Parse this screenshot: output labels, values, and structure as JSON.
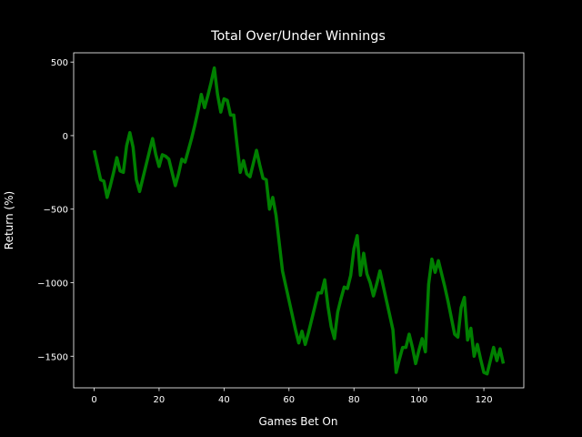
{
  "chart_data": {
    "type": "line",
    "title": "Total Over/Under Winnings",
    "x_label": "Games Bet On",
    "y_label": "Return (%)",
    "x": [
      0,
      1,
      2,
      3,
      4,
      5,
      6,
      7,
      8,
      9,
      10,
      11,
      12,
      13,
      14,
      15,
      16,
      17,
      18,
      19,
      20,
      21,
      22,
      23,
      24,
      25,
      26,
      27,
      28,
      29,
      30,
      31,
      32,
      33,
      34,
      35,
      36,
      37,
      38,
      39,
      40,
      41,
      42,
      43,
      44,
      45,
      46,
      47,
      48,
      49,
      50,
      51,
      52,
      53,
      54,
      55,
      56,
      57,
      58,
      59,
      60,
      61,
      62,
      63,
      64,
      65,
      66,
      67,
      68,
      69,
      70,
      71,
      72,
      73,
      74,
      75,
      76,
      77,
      78,
      79,
      80,
      81,
      82,
      83,
      84,
      85,
      86,
      87,
      88,
      89,
      90,
      91,
      92,
      93,
      94,
      95,
      96,
      97,
      98,
      99,
      100,
      101,
      102,
      103,
      104,
      105,
      106,
      107,
      108,
      109,
      110,
      111,
      112,
      113,
      114,
      115,
      116,
      117,
      118,
      119,
      120,
      121,
      122,
      123,
      124,
      125,
      126
    ],
    "series": [
      {
        "name": "Return",
        "color": "#008000",
        "values": [
          -100,
          -200,
          -300,
          -310,
          -420,
          -340,
          -250,
          -150,
          -240,
          -250,
          -70,
          20,
          -80,
          -300,
          -380,
          -290,
          -200,
          -110,
          -20,
          -130,
          -210,
          -130,
          -140,
          -160,
          -250,
          -340,
          -260,
          -160,
          -180,
          -100,
          -20,
          70,
          170,
          280,
          190,
          270,
          360,
          460,
          280,
          160,
          250,
          240,
          140,
          140,
          -60,
          -250,
          -170,
          -260,
          -280,
          -190,
          -100,
          -200,
          -290,
          -300,
          -500,
          -420,
          -540,
          -730,
          -920,
          -1020,
          -1120,
          -1220,
          -1320,
          -1410,
          -1330,
          -1420,
          -1340,
          -1250,
          -1160,
          -1070,
          -1070,
          -980,
          -1160,
          -1300,
          -1380,
          -1200,
          -1110,
          -1030,
          -1040,
          -950,
          -770,
          -680,
          -950,
          -800,
          -940,
          -1000,
          -1090,
          -1010,
          -920,
          -1020,
          -1120,
          -1220,
          -1320,
          -1610,
          -1520,
          -1440,
          -1440,
          -1350,
          -1440,
          -1550,
          -1460,
          -1380,
          -1470,
          -1010,
          -840,
          -930,
          -850,
          -940,
          -1030,
          -1130,
          -1240,
          -1350,
          -1370,
          -1170,
          -1100,
          -1390,
          -1310,
          -1500,
          -1420,
          -1520,
          -1610,
          -1620,
          -1530,
          -1440,
          -1530,
          -1450,
          -1550
        ]
      }
    ],
    "xlim": [
      -6.3,
      132.3
    ],
    "ylim": [
      -1715,
      563
    ],
    "xticks": [
      0,
      20,
      40,
      60,
      80,
      100,
      120
    ],
    "yticks": [
      {
        "value": -1500,
        "label": "−1500"
      },
      {
        "value": -1000,
        "label": "−1000"
      },
      {
        "value": -500,
        "label": "−500"
      },
      0,
      500
    ]
  }
}
